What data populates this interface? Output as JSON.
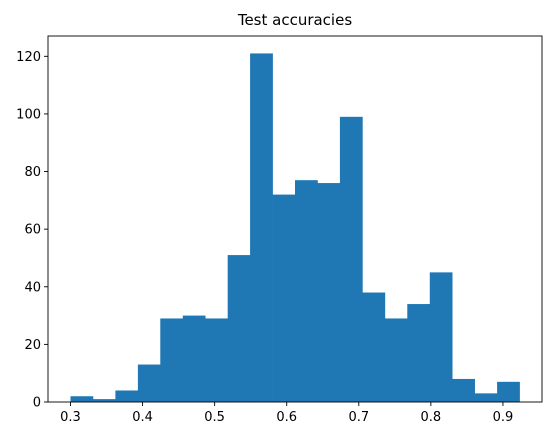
{
  "chart_data": {
    "type": "bar",
    "title": "Test accuracies",
    "xlabel": "",
    "ylabel": "",
    "bins": [
      {
        "x0": 0.3,
        "x1": 0.3312,
        "count": 2
      },
      {
        "x0": 0.3312,
        "x1": 0.3623,
        "count": 1
      },
      {
        "x0": 0.3623,
        "x1": 0.3935,
        "count": 4
      },
      {
        "x0": 0.3935,
        "x1": 0.4246,
        "count": 13
      },
      {
        "x0": 0.4246,
        "x1": 0.4558,
        "count": 29
      },
      {
        "x0": 0.4558,
        "x1": 0.4869,
        "count": 30
      },
      {
        "x0": 0.4869,
        "x1": 0.5181,
        "count": 29
      },
      {
        "x0": 0.5181,
        "x1": 0.5492,
        "count": 51
      },
      {
        "x0": 0.5492,
        "x1": 0.5804,
        "count": 121
      },
      {
        "x0": 0.5804,
        "x1": 0.6115,
        "count": 72
      },
      {
        "x0": 0.6115,
        "x1": 0.6427,
        "count": 77
      },
      {
        "x0": 0.6427,
        "x1": 0.6738,
        "count": 76
      },
      {
        "x0": 0.6738,
        "x1": 0.705,
        "count": 99
      },
      {
        "x0": 0.705,
        "x1": 0.7362,
        "count": 38
      },
      {
        "x0": 0.7362,
        "x1": 0.7673,
        "count": 29
      },
      {
        "x0": 0.7673,
        "x1": 0.7985,
        "count": 34
      },
      {
        "x0": 0.7985,
        "x1": 0.8296,
        "count": 45
      },
      {
        "x0": 0.8296,
        "x1": 0.8608,
        "count": 8
      },
      {
        "x0": 0.8608,
        "x1": 0.8919,
        "count": 3
      },
      {
        "x0": 0.8919,
        "x1": 0.9231,
        "count": 7
      }
    ],
    "xlim": [
      0.2688,
      0.9542
    ],
    "ylim": [
      0,
      127.05
    ],
    "xticks": [
      {
        "value": 0.3,
        "label": "0.3"
      },
      {
        "value": 0.4,
        "label": "0.4"
      },
      {
        "value": 0.5,
        "label": "0.5"
      },
      {
        "value": 0.6,
        "label": "0.6"
      },
      {
        "value": 0.7,
        "label": "0.7"
      },
      {
        "value": 0.8,
        "label": "0.8"
      },
      {
        "value": 0.9,
        "label": "0.9"
      }
    ],
    "yticks": [
      {
        "value": 0,
        "label": "0"
      },
      {
        "value": 20,
        "label": "20"
      },
      {
        "value": 40,
        "label": "40"
      },
      {
        "value": 60,
        "label": "60"
      },
      {
        "value": 80,
        "label": "80"
      },
      {
        "value": 100,
        "label": "100"
      },
      {
        "value": 120,
        "label": "120"
      }
    ],
    "grid": false,
    "bar_color": "#1f77b4"
  }
}
